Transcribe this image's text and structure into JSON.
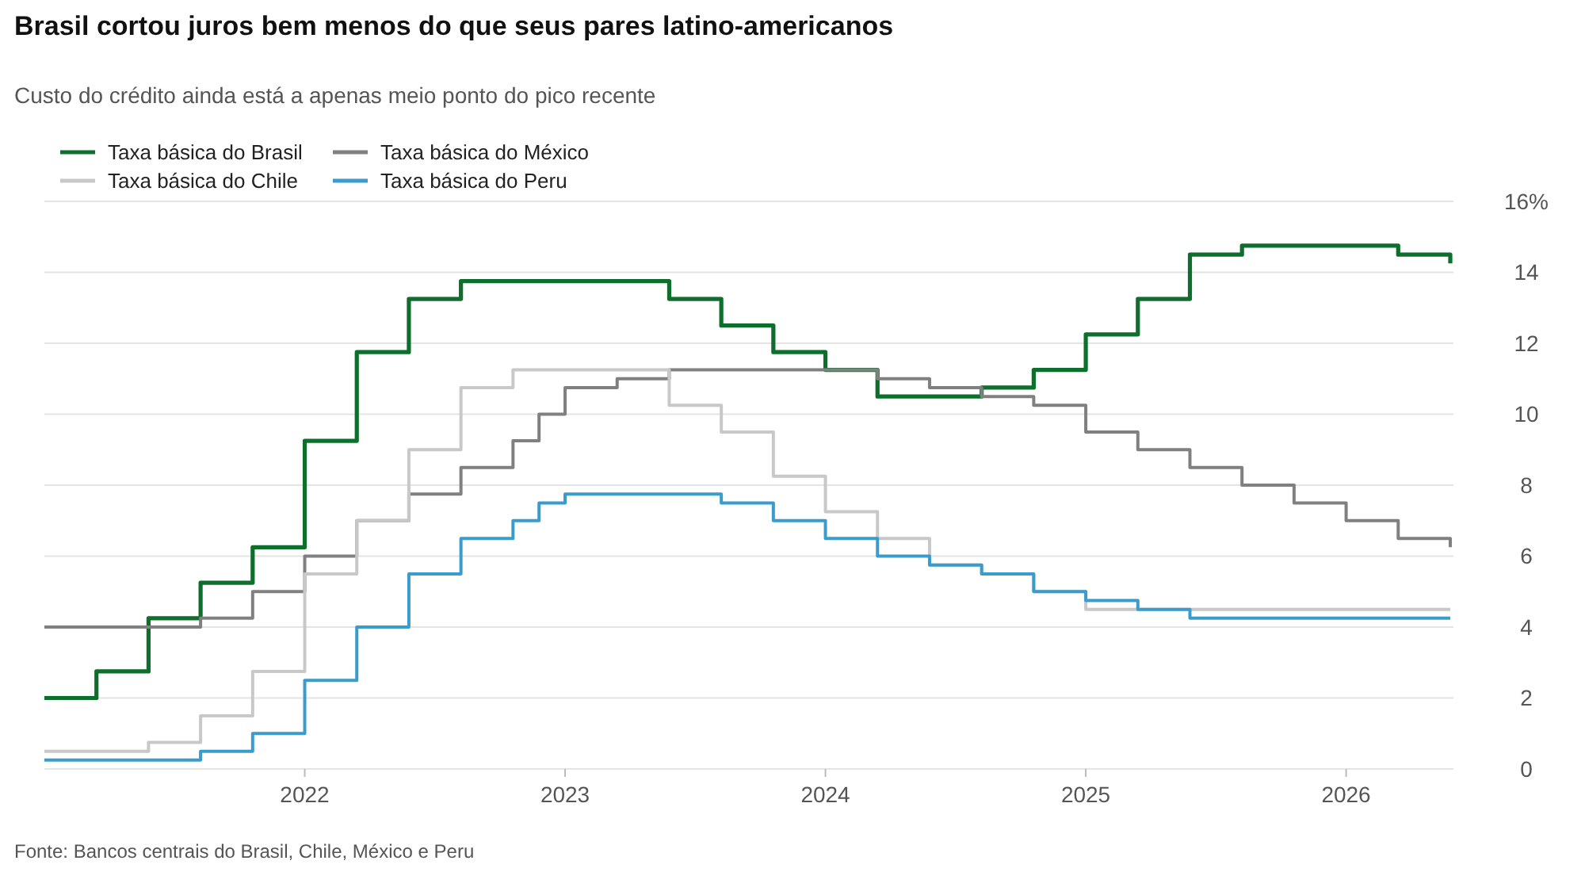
{
  "chart_data": {
    "type": "step",
    "title": "Brasil cortou juros bem menos do que seus pares latino-americanos",
    "subtitle": "Custo do crédito ainda está a apenas meio ponto do pico recente",
    "annotations": [
      "Fonte: Bancos centrais do Brasil, Chile, México e Peru"
    ],
    "x": [
      2021.0,
      2021.2,
      2021.4,
      2021.6,
      2021.8,
      2022.0,
      2022.2,
      2022.4,
      2022.6,
      2022.8,
      2023.0,
      2023.2,
      2023.4,
      2023.6,
      2023.8,
      2024.0,
      2024.2,
      2024.4,
      2024.6,
      2024.8,
      2025.0,
      2025.2,
      2025.4,
      2025.6,
      2025.8,
      2026.0,
      2026.2,
      2026.4
    ],
    "series": [
      {
        "name": "Taxa básica do Brasil",
        "color": "#0e6e2c",
        "values": [
          2,
          2.75,
          4.25,
          5.25,
          6.25,
          9.25,
          11.75,
          13.25,
          13.75,
          13.75,
          13.75,
          13.75,
          13.25,
          12.5,
          11.75,
          11.25,
          10.5,
          10.5,
          10.75,
          11.25,
          12.25,
          13.25,
          14.5,
          14.75,
          14.75,
          14.75,
          14.5,
          14.25
        ]
      },
      {
        "name": "Taxa básica do México",
        "color": "#808080",
        "x": [
          2021.0,
          2021.2,
          2021.4,
          2021.6,
          2021.8,
          2022.0,
          2022.2,
          2022.4,
          2022.6,
          2022.8,
          2022.9,
          2023.0,
          2023.2,
          2023.4,
          2023.6,
          2023.8,
          2024.0,
          2024.2,
          2024.4,
          2024.6,
          2024.8,
          2025.0,
          2025.2,
          2025.4,
          2025.6,
          2025.8,
          2026.0,
          2026.2,
          2026.4
        ],
        "values": [
          4,
          4,
          4,
          4.25,
          5,
          6,
          7,
          7.75,
          8.5,
          9.25,
          10,
          10.75,
          11,
          11.25,
          11.25,
          11.25,
          11.25,
          11,
          10.75,
          10.5,
          10.25,
          9.5,
          9,
          8.5,
          8,
          7.5,
          7,
          6.5,
          6.25
        ]
      },
      {
        "name": "Taxa básica do Chile",
        "color": "#c8c8c8",
        "values": [
          0.5,
          0.5,
          0.75,
          1.5,
          2.75,
          5.5,
          7,
          9,
          10.75,
          11.25,
          11.25,
          11.25,
          10.25,
          9.5,
          8.25,
          7.25,
          6.5,
          5.75,
          5.5,
          5,
          4.5,
          4.5,
          4.5,
          4.5,
          4.5,
          4.5,
          4.5,
          4.5
        ]
      },
      {
        "name": "Taxa básica do Peru",
        "color": "#3a9ccc",
        "x": [
          2021.0,
          2021.2,
          2021.4,
          2021.6,
          2021.8,
          2022.0,
          2022.2,
          2022.4,
          2022.6,
          2022.8,
          2022.9,
          2023.0,
          2023.2,
          2023.4,
          2023.6,
          2023.8,
          2024.0,
          2024.2,
          2024.4,
          2024.6,
          2024.8,
          2025.0,
          2025.2,
          2025.4,
          2025.6,
          2025.8,
          2026.0,
          2026.2,
          2026.4
        ],
        "values": [
          0.25,
          0.25,
          0.25,
          0.5,
          1,
          2.5,
          4,
          5.5,
          6.5,
          7,
          7.5,
          7.75,
          7.75,
          7.75,
          7.5,
          7,
          6.5,
          6,
          5.75,
          5.5,
          5,
          4.75,
          4.5,
          4.25,
          4.25,
          4.25,
          4.25,
          4.25,
          4.25
        ]
      }
    ],
    "xlim": [
      2021.0,
      2026.4
    ],
    "xticks": [
      2022,
      2023,
      2024,
      2025,
      2026
    ],
    "ylim": [
      0,
      16
    ],
    "yticks": [
      0,
      2,
      4,
      6,
      8,
      10,
      12,
      14,
      {
        "value": 16,
        "label": "16%"
      }
    ],
    "grid": "y",
    "legend": "top left"
  }
}
